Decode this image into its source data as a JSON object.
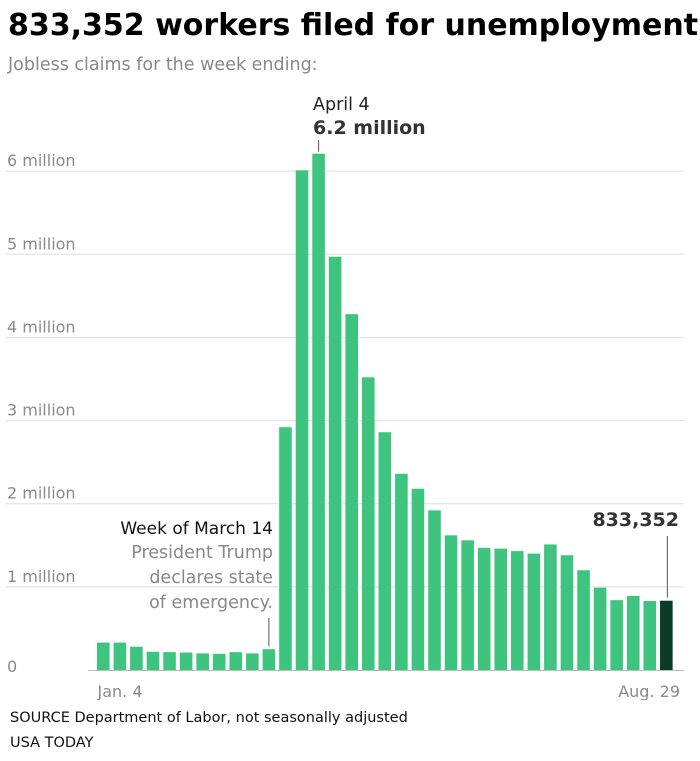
{
  "title": "833,352 workers filed for unemployment",
  "subtitle": "Jobless claims for the week ending:",
  "source": "SOURCE Department of Labor, not seasonally adjusted",
  "credit": "USA TODAY",
  "colors": {
    "bar": "#3ec47f",
    "highlight": "#0b3d26",
    "grid": "#dddddd",
    "axis_text": "#8a8a8a",
    "title": "#000000",
    "annotation_muted": "#888888"
  },
  "chart_data": {
    "type": "bar",
    "title": "833,352 workers filed for unemployment",
    "subtitle": "Jobless claims for the week ending:",
    "ylim": [
      0,
      7000000
    ],
    "yticks": [
      0,
      1000000,
      2000000,
      3000000,
      4000000,
      5000000,
      6000000
    ],
    "ytick_labels": [
      "0",
      "1 million",
      "2 million",
      "3 million",
      "4 million",
      "5 million",
      "6 million"
    ],
    "x_first_label": "Jan. 4",
    "x_last_label": "Aug. 29",
    "grid": true,
    "values": [
      330000,
      330000,
      280000,
      220000,
      215000,
      210000,
      200000,
      195000,
      215000,
      200000,
      250000,
      2920000,
      6010000,
      6210000,
      4970000,
      4280000,
      3520000,
      2860000,
      2360000,
      2180000,
      1920000,
      1620000,
      1560000,
      1470000,
      1460000,
      1430000,
      1400000,
      1510000,
      1380000,
      1200000,
      990000,
      840000,
      890000,
      830000,
      833352
    ],
    "highlight_index": 34,
    "annotations": {
      "peak": {
        "index": 13,
        "date": "April 4",
        "value_label": "6.2 million"
      },
      "march": {
        "index": 10,
        "heading": "Week of March 14",
        "lines": [
          "President Trump",
          "declares state",
          "of emergency."
        ]
      },
      "latest": {
        "index": 34,
        "value_label": "833,352"
      }
    }
  }
}
